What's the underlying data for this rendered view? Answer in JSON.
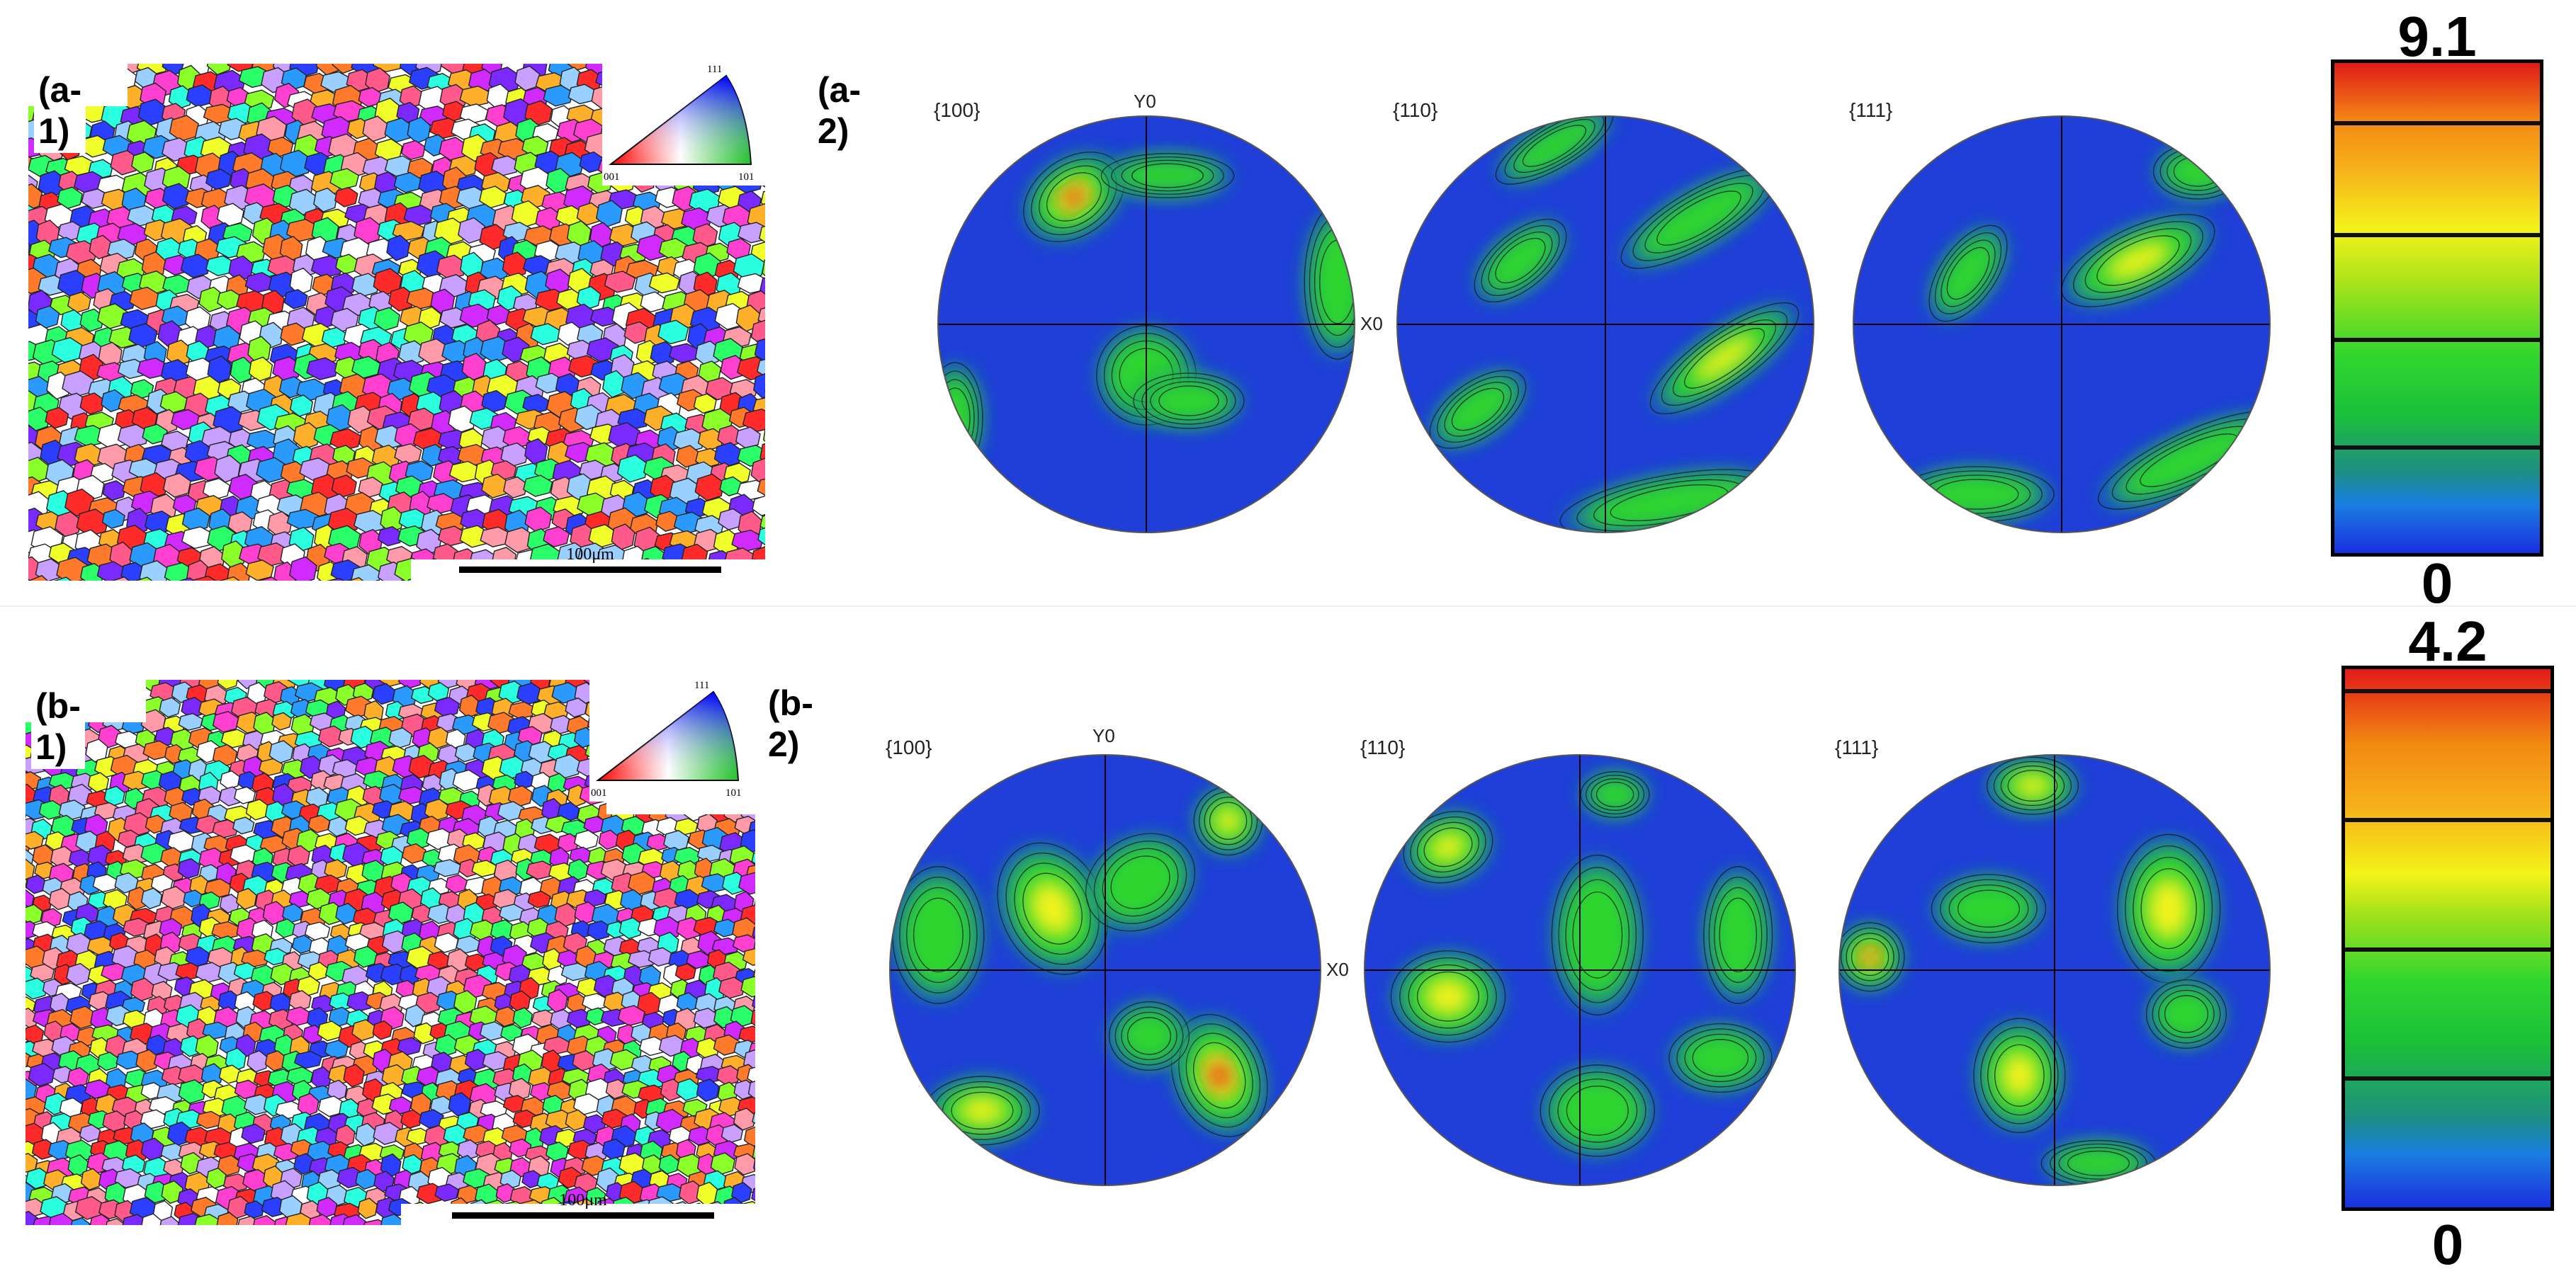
{
  "rows": [
    {
      "id": "a",
      "map_label": "(a-1)",
      "pf_label": "(a-2)",
      "scale_text": "100μm",
      "ipf_key": {
        "top": "111",
        "left": "001",
        "right": "101"
      },
      "pf_titles": [
        "{100}",
        "{110}",
        "{111}"
      ],
      "axis_y": "Y0",
      "axis_x": "X0",
      "colorbar": {
        "max": "9.1",
        "min": "0"
      }
    },
    {
      "id": "b",
      "map_label": "(b-1)",
      "pf_label": "(b-2)",
      "scale_text": "100μm",
      "ipf_key": {
        "top": "111",
        "left": "001",
        "right": "101"
      },
      "pf_titles": [
        "{100}",
        "{110}",
        "{111}"
      ],
      "axis_y": "Y0",
      "axis_x": "X0",
      "colorbar": {
        "max": "4.2",
        "min": "0"
      }
    }
  ],
  "colors": {
    "pf_background": "#1f3fd8",
    "pf_green": "#2fd62f",
    "pf_yellow": "#f3f31b",
    "pf_red": "#e21a1a"
  }
}
